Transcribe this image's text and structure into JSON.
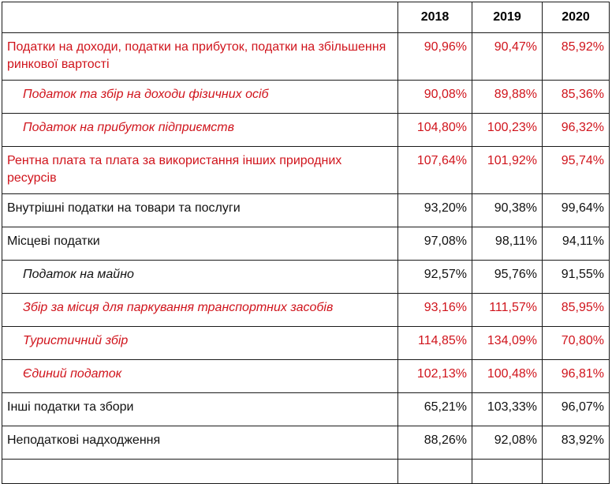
{
  "header": {
    "c0": "",
    "c1": "2018",
    "c2": "2019",
    "c3": "2020"
  },
  "rows": [
    {
      "label": "Податки на доходи, податки на прибуток, податки на збільшення ринкової вартості",
      "v1": "90,96%",
      "v2": "90,47%",
      "v3": "85,92%",
      "color": "red",
      "sub": false
    },
    {
      "label": "Податок та збір на доходи фізичних осіб",
      "v1": "90,08%",
      "v2": "89,88%",
      "v3": "85,36%",
      "color": "red",
      "sub": true
    },
    {
      "label": "Податок на прибуток підприємств",
      "v1": "104,80%",
      "v2": "100,23%",
      "v3": "96,32%",
      "color": "red",
      "sub": true
    },
    {
      "label": "Рентна плата та плата за використання інших природних ресурсів",
      "v1": "107,64%",
      "v2": "101,92%",
      "v3": "95,74%",
      "color": "red",
      "sub": false
    },
    {
      "label": "Внутрішні податки на товари та послуги",
      "v1": "93,20%",
      "v2": "90,38%",
      "v3": "99,64%",
      "color": "black",
      "sub": false
    },
    {
      "label": "Місцеві податки",
      "v1": "97,08%",
      "v2": "98,11%",
      "v3": "94,11%",
      "color": "black",
      "sub": false
    },
    {
      "label": "Податок на майно",
      "v1": "92,57%",
      "v2": "95,76%",
      "v3": "91,55%",
      "color": "black",
      "sub": true
    },
    {
      "label": "Збір за місця для паркування транспортних засобів",
      "v1": "93,16%",
      "v2": "111,57%",
      "v3": "85,95%",
      "color": "red",
      "sub": true
    },
    {
      "label": "Туристичний збір",
      "v1": "114,85%",
      "v2": "134,09%",
      "v3": "70,80%",
      "color": "red",
      "sub": true
    },
    {
      "label": "Єдиний податок",
      "v1": "102,13%",
      "v2": "100,48%",
      "v3": "96,81%",
      "color": "red",
      "sub": true
    },
    {
      "label": "Інші податки та збори",
      "v1": "65,21%",
      "v2": "103,33%",
      "v3": "96,07%",
      "color": "black",
      "sub": false
    },
    {
      "label": "Неподаткові надходження",
      "v1": "88,26%",
      "v2": "92,08%",
      "v3": "83,92%",
      "color": "black",
      "sub": false
    }
  ],
  "colors": {
    "red": "#d0141c",
    "black": "#111111"
  }
}
